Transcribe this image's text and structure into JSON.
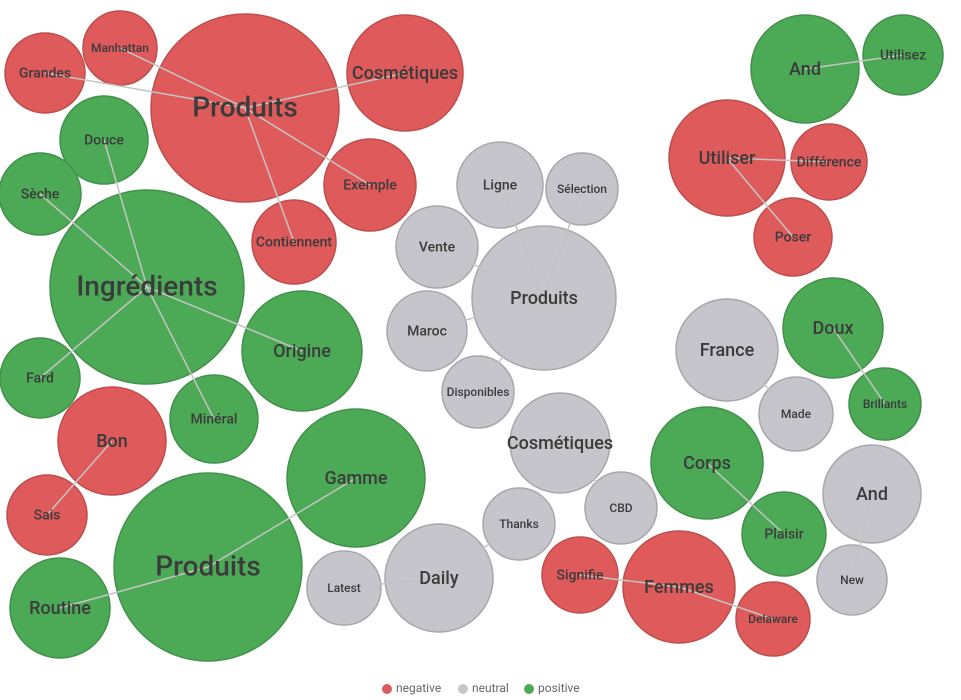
{
  "nodes": [
    {
      "label": "Produits",
      "group": "negative"
    },
    {
      "label": "Manhattan",
      "group": "negative"
    },
    {
      "label": "Grandes",
      "group": "negative"
    },
    {
      "label": "Cosmétiques",
      "group": "negative"
    },
    {
      "label": "Exemple",
      "group": "negative"
    },
    {
      "label": "Contiennent",
      "group": "negative"
    },
    {
      "label": "Ingrédients",
      "group": "positive"
    },
    {
      "label": "Douce",
      "group": "positive"
    },
    {
      "label": "Sèche",
      "group": "positive"
    },
    {
      "label": "Origine",
      "group": "positive"
    },
    {
      "label": "Fard",
      "group": "positive"
    },
    {
      "label": "Minéral",
      "group": "positive"
    },
    {
      "label": "Bon",
      "group": "negative"
    },
    {
      "label": "Sais",
      "group": "negative"
    },
    {
      "label": "Produits",
      "group": "positive"
    },
    {
      "label": "Gamme",
      "group": "positive"
    },
    {
      "label": "Routine",
      "group": "positive"
    },
    {
      "label": "Produits",
      "group": "neutral"
    },
    {
      "label": "Ligne",
      "group": "neutral"
    },
    {
      "label": "Sélection",
      "group": "neutral"
    },
    {
      "label": "Vente",
      "group": "neutral"
    },
    {
      "label": "Maroc",
      "group": "neutral"
    },
    {
      "label": "Disponibles",
      "group": "neutral"
    },
    {
      "label": "Daily",
      "group": "neutral"
    },
    {
      "label": "Thanks",
      "group": "neutral"
    },
    {
      "label": "Latest",
      "group": "neutral"
    },
    {
      "label": "Cosmétiques",
      "group": "neutral"
    },
    {
      "label": "CBD",
      "group": "neutral"
    },
    {
      "label": "Femmes",
      "group": "negative"
    },
    {
      "label": "Signifie",
      "group": "negative"
    },
    {
      "label": "Delaware",
      "group": "negative"
    },
    {
      "label": "Corps",
      "group": "positive"
    },
    {
      "label": "Plaisir",
      "group": "positive"
    },
    {
      "label": "France",
      "group": "neutral"
    },
    {
      "label": "Made",
      "group": "neutral"
    },
    {
      "label": "Doux",
      "group": "positive"
    },
    {
      "label": "Brillants",
      "group": "positive"
    },
    {
      "label": "And",
      "group": "neutral"
    },
    {
      "label": "New",
      "group": "neutral"
    },
    {
      "label": "And",
      "group": "positive"
    },
    {
      "label": "Utilisez",
      "group": "positive"
    },
    {
      "label": "Utiliser",
      "group": "negative"
    },
    {
      "label": "Différence",
      "group": "negative"
    },
    {
      "label": "Poser",
      "group": "negative"
    }
  ],
  "legend": [
    {
      "label": "negative",
      "color": "#df5a5a"
    },
    {
      "label": "neutral",
      "color": "#c6c5cb"
    },
    {
      "label": "positive",
      "color": "#4caa57"
    }
  ]
}
